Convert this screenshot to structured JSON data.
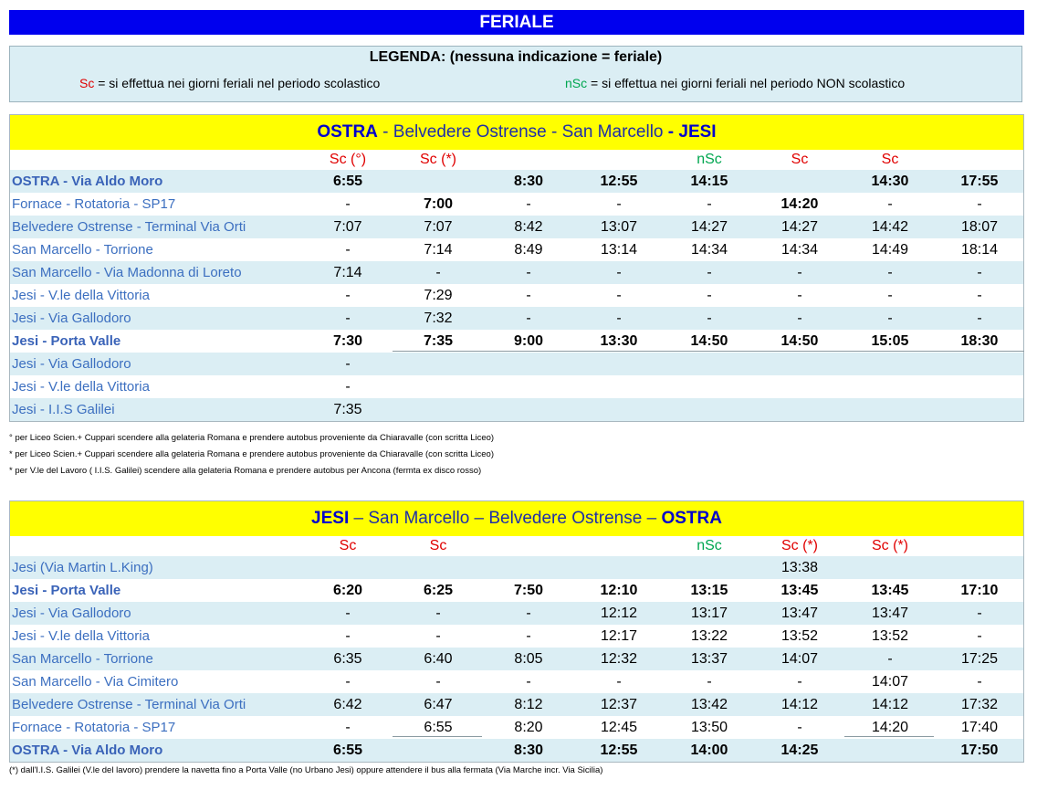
{
  "banner": "FERIALE",
  "legend": {
    "title": "LEGENDA: (nessuna indicazione = feriale)",
    "sc_code": "Sc",
    "sc_text": " = si effettua nei giorni feriali nel periodo scolastico",
    "nsc_code": "nSc",
    "nsc_text": " = si effettua nei giorni feriali nel periodo NON scolastico"
  },
  "colors": {
    "banner": "#0000ee",
    "title_bar": "#ffff00",
    "alt_row": "#dbeef4",
    "sc": "#e00000",
    "nsc": "#00a650"
  },
  "table1": {
    "title": {
      "a": "OSTRA",
      "b": " - Belvedere Ostrense - San Marcello ",
      "c": "- JESI"
    },
    "headers": [
      "Sc  (°)",
      "Sc (*)",
      "",
      "",
      "nSc",
      "Sc",
      "Sc",
      ""
    ],
    "rows": [
      {
        "stop": "OSTRA - Via Aldo Moro",
        "times": [
          "6:55",
          "",
          "8:30",
          "12:55",
          "14:15",
          "",
          "14:30",
          "17:55"
        ]
      },
      {
        "stop": "Fornace - Rotatoria - SP17",
        "times": [
          "-",
          "7:00",
          "-",
          "-",
          "-",
          "14:20",
          "-",
          "-"
        ]
      },
      {
        "stop": "Belvedere Ostrense - Terminal Via Orti",
        "times": [
          "7:07",
          "7:07",
          "8:42",
          "13:07",
          "14:27",
          "14:27",
          "14:42",
          "18:07"
        ]
      },
      {
        "stop": "San Marcello - Torrione",
        "times": [
          "-",
          "7:14",
          "8:49",
          "13:14",
          "14:34",
          "14:34",
          "14:49",
          "18:14"
        ]
      },
      {
        "stop": "San Marcello - Via Madonna di Loreto",
        "times": [
          "7:14",
          "-",
          "-",
          "-",
          "-",
          "-",
          "-",
          "-"
        ]
      },
      {
        "stop": "Jesi - V.le della Vittoria",
        "times": [
          "-",
          "7:29",
          "-",
          "-",
          "-",
          "-",
          "-",
          "-"
        ]
      },
      {
        "stop": "Jesi - Via Gallodoro",
        "times": [
          "-",
          "7:32",
          "-",
          "-",
          "-",
          "-",
          "-",
          "-"
        ]
      },
      {
        "stop": "Jesi - Porta Valle",
        "times": [
          "7:30",
          "7:35",
          "9:00",
          "13:30",
          "14:50",
          "14:50",
          "15:05",
          "18:30"
        ]
      },
      {
        "stop": "Jesi - Via Gallodoro",
        "times": [
          "-",
          "",
          "",
          "",
          "",
          "",
          "",
          ""
        ]
      },
      {
        "stop": "Jesi - V.le della Vittoria",
        "times": [
          "-",
          "",
          "",
          "",
          "",
          "",
          "",
          ""
        ]
      },
      {
        "stop": "Jesi - I.I.S Galilei",
        "times": [
          "7:35",
          "",
          "",
          "",
          "",
          "",
          "",
          ""
        ]
      }
    ]
  },
  "notes": [
    "°  per Liceo Scien.+ Cuppari scendere alla gelateria Romana e prendere autobus proveniente da Chiaravalle (con scritta Liceo)",
    "*  per Liceo Scien.+ Cuppari scendere alla gelateria Romana e prendere autobus proveniente da Chiaravalle (con scritta Liceo)",
    "*  per V.le del Lavoro ( I.I.S. Galilei) scendere alla gelateria Romana e prendere autobus per Ancona (fermta ex disco rosso)"
  ],
  "table2": {
    "title": {
      "a": "JESI",
      "b": " – San Marcello – Belvedere Ostrense – ",
      "c": "OSTRA"
    },
    "headers": [
      "Sc",
      "Sc",
      "",
      "",
      "nSc",
      "Sc (*)",
      "Sc (*)",
      ""
    ],
    "rows": [
      {
        "stop": "Jesi (Via Martin L.King)",
        "times": [
          "",
          "",
          "",
          "",
          "",
          "13:38",
          "",
          ""
        ]
      },
      {
        "stop": "Jesi - Porta Valle",
        "times": [
          "6:20",
          "6:25",
          "7:50",
          "12:10",
          "13:15",
          "13:45",
          "13:45",
          "17:10"
        ]
      },
      {
        "stop": "Jesi - Via Gallodoro",
        "times": [
          "-",
          "-",
          "-",
          "12:12",
          "13:17",
          "13:47",
          "13:47",
          "-"
        ]
      },
      {
        "stop": "Jesi - V.le della Vittoria",
        "times": [
          "-",
          "-",
          "-",
          "12:17",
          "13:22",
          "13:52",
          "13:52",
          "-"
        ]
      },
      {
        "stop": "San Marcello - Torrione",
        "times": [
          "6:35",
          "6:40",
          "8:05",
          "12:32",
          "13:37",
          "14:07",
          "-",
          "17:25"
        ]
      },
      {
        "stop": "San Marcello - Via Cimitero",
        "times": [
          "-",
          "-",
          "-",
          "-",
          "-",
          "-",
          "14:07",
          "-"
        ]
      },
      {
        "stop": "Belvedere Ostrense - Terminal Via Orti",
        "times": [
          "6:42",
          "6:47",
          "8:12",
          "12:37",
          "13:42",
          "14:12",
          "14:12",
          "17:32"
        ]
      },
      {
        "stop": "Fornace - Rotatoria - SP17",
        "times": [
          "-",
          "6:55",
          "8:20",
          "12:45",
          "13:50",
          "-",
          "14:20",
          "17:40"
        ]
      },
      {
        "stop": "OSTRA - Via Aldo Moro",
        "times": [
          "6:55",
          "",
          "8:30",
          "12:55",
          "14:00",
          "14:25",
          "",
          "17:50"
        ]
      }
    ]
  },
  "footnote": "(*) dall'I.I.S. Galilei (V.le del lavoro) prendere la navetta fino a Porta Valle (no Urbano Jesi) oppure attendere il bus alla fermata (Via Marche incr. Via Sicilia)"
}
